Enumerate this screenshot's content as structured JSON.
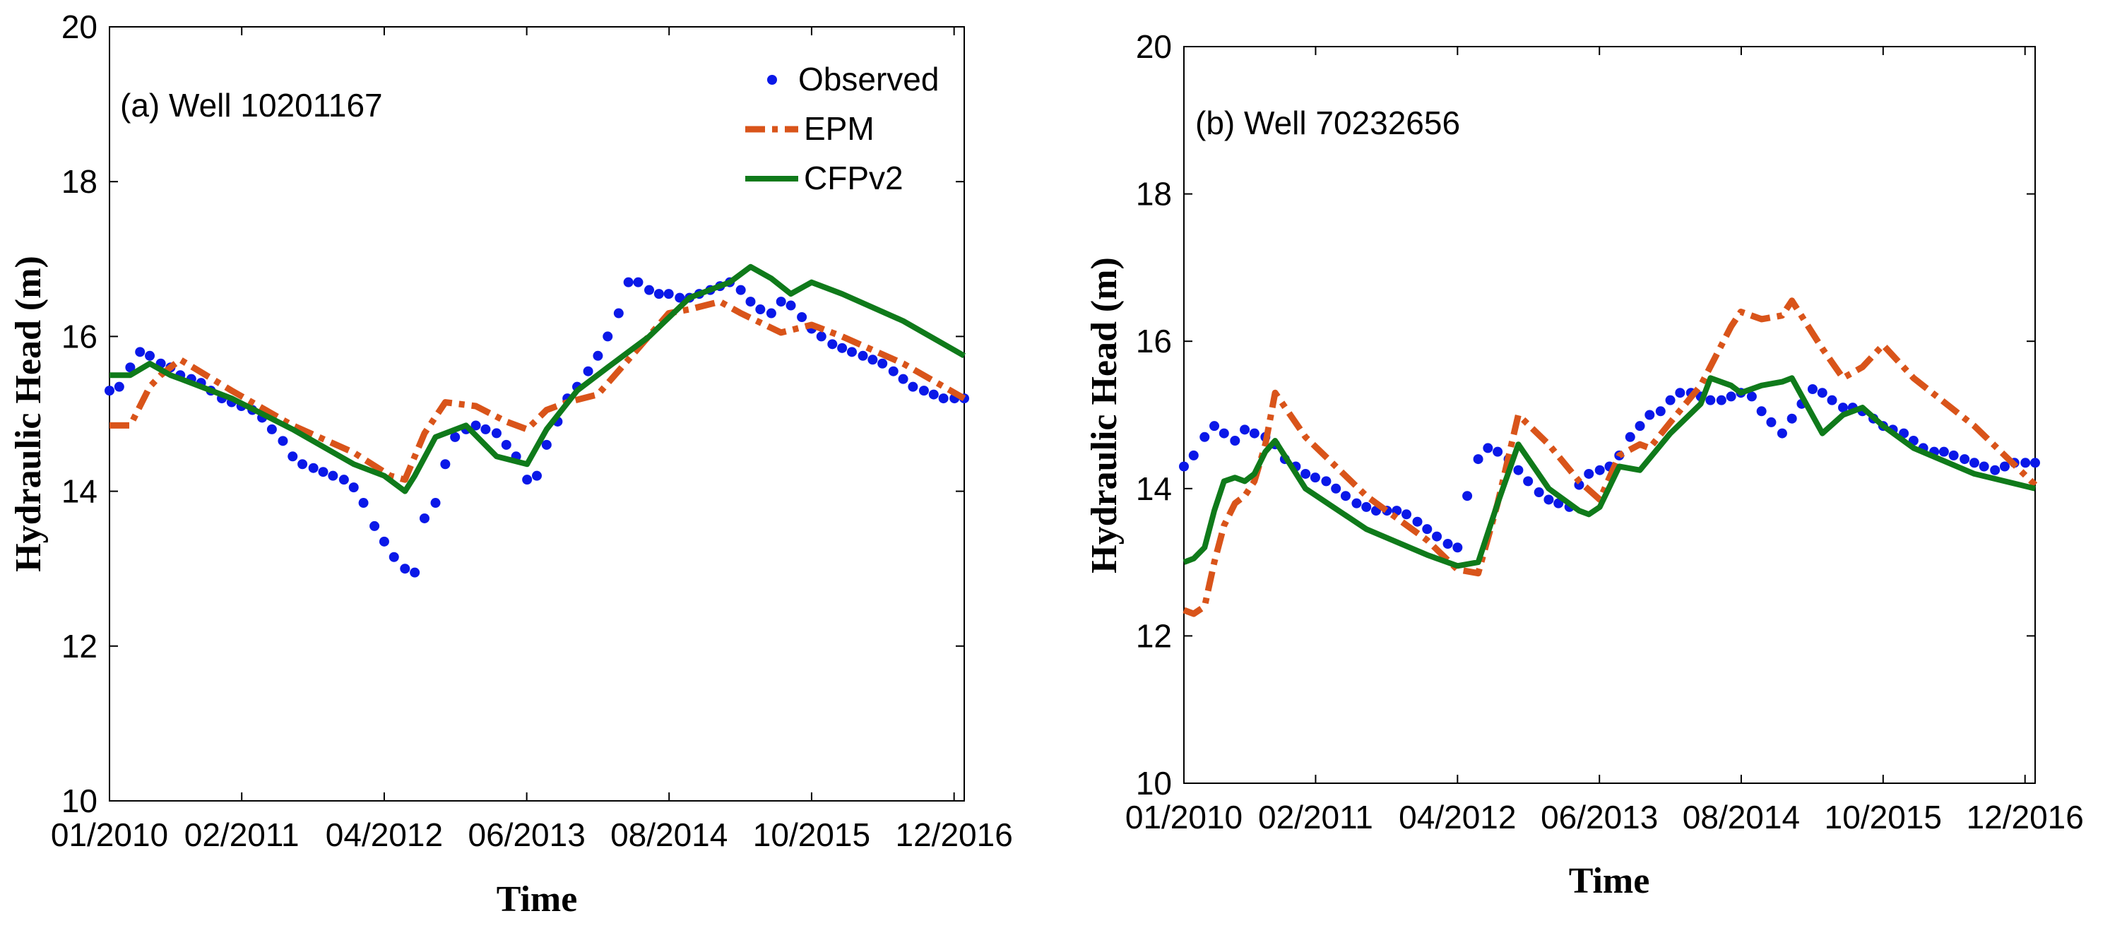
{
  "chart_data": [
    {
      "type": "line",
      "title": "(a) Well 10201167",
      "xlabel": "Time",
      "ylabel": "Hydraulic Head (m)",
      "ylim": [
        10,
        20
      ],
      "xlim": [
        2010.0,
        2017.0
      ],
      "yticks": [
        10,
        12,
        14,
        16,
        18,
        20
      ],
      "xticks": [
        {
          "value": 2010.0,
          "label": "01/2010"
        },
        {
          "value": 2011.083,
          "label": "02/2011"
        },
        {
          "value": 2012.25,
          "label": "04/2012"
        },
        {
          "value": 2013.417,
          "label": "06/2013"
        },
        {
          "value": 2014.583,
          "label": "08/2014"
        },
        {
          "value": 2015.75,
          "label": "10/2015"
        },
        {
          "value": 2016.917,
          "label": "12/2016"
        }
      ],
      "legend": {
        "position": "top-right",
        "entries": [
          "Observed",
          "EPM",
          "CFPv2"
        ]
      },
      "series": [
        {
          "name": "Observed",
          "style": "dots",
          "color": "#0a18e8",
          "x": [
            2010.0,
            2010.08,
            2010.17,
            2010.25,
            2010.33,
            2010.42,
            2010.5,
            2010.58,
            2010.67,
            2010.75,
            2010.83,
            2010.92,
            2011.0,
            2011.08,
            2011.17,
            2011.25,
            2011.33,
            2011.42,
            2011.5,
            2011.58,
            2011.67,
            2011.75,
            2011.83,
            2011.92,
            2012.0,
            2012.08,
            2012.17,
            2012.25,
            2012.33,
            2012.42,
            2012.5,
            2012.58,
            2012.67,
            2012.75,
            2012.83,
            2012.92,
            2013.0,
            2013.08,
            2013.17,
            2013.25,
            2013.33,
            2013.42,
            2013.5,
            2013.58,
            2013.67,
            2013.75,
            2013.83,
            2013.92,
            2014.0,
            2014.08,
            2014.17,
            2014.25,
            2014.33,
            2014.42,
            2014.5,
            2014.58,
            2014.67,
            2014.75,
            2014.83,
            2014.92,
            2015.0,
            2015.08,
            2015.17,
            2015.25,
            2015.33,
            2015.42,
            2015.5,
            2015.58,
            2015.67,
            2015.75,
            2015.83,
            2015.92,
            2016.0,
            2016.08,
            2016.17,
            2016.25,
            2016.33,
            2016.42,
            2016.5,
            2016.58,
            2016.67,
            2016.75,
            2016.83,
            2016.92,
            2017.0
          ],
          "y": [
            15.3,
            15.35,
            15.6,
            15.8,
            15.75,
            15.65,
            15.6,
            15.5,
            15.45,
            15.4,
            15.3,
            15.2,
            15.15,
            15.1,
            15.05,
            14.95,
            14.8,
            14.65,
            14.45,
            14.35,
            14.3,
            14.25,
            14.2,
            14.15,
            14.05,
            13.85,
            13.55,
            13.35,
            13.15,
            13.0,
            12.95,
            13.65,
            13.85,
            14.35,
            14.7,
            14.8,
            14.85,
            14.8,
            14.75,
            14.6,
            14.45,
            14.15,
            14.2,
            14.6,
            14.9,
            15.2,
            15.35,
            15.55,
            15.75,
            16.0,
            16.3,
            16.7,
            16.7,
            16.6,
            16.55,
            16.55,
            16.5,
            16.5,
            16.55,
            16.6,
            16.65,
            16.7,
            16.6,
            16.45,
            16.35,
            16.3,
            16.45,
            16.4,
            16.25,
            16.1,
            16.0,
            15.9,
            15.85,
            15.8,
            15.75,
            15.7,
            15.65,
            15.55,
            15.45,
            15.35,
            15.3,
            15.25,
            15.2,
            15.2,
            15.2
          ]
        },
        {
          "name": "EPM",
          "style": "dash",
          "color": "#d9541a",
          "x": [
            2010.0,
            2010.17,
            2010.33,
            2010.42,
            2010.5,
            2010.58,
            2011.0,
            2011.5,
            2012.0,
            2012.3,
            2012.42,
            2012.58,
            2012.75,
            2013.0,
            2013.25,
            2013.42,
            2013.58,
            2013.75,
            2014.0,
            2014.25,
            2014.58,
            2014.75,
            2015.0,
            2015.17,
            2015.5,
            2015.75,
            2016.0,
            2016.5,
            2017.0
          ],
          "y": [
            14.85,
            14.85,
            15.35,
            15.5,
            15.6,
            15.7,
            15.3,
            14.85,
            14.5,
            14.2,
            14.15,
            14.75,
            15.15,
            15.1,
            14.9,
            14.8,
            15.05,
            15.15,
            15.25,
            15.7,
            16.3,
            16.35,
            16.45,
            16.3,
            16.05,
            16.15,
            16.0,
            15.65,
            15.2
          ]
        },
        {
          "name": "CFPv2",
          "style": "solid",
          "color": "#0f7a1a",
          "x": [
            2010.0,
            2010.17,
            2010.33,
            2010.5,
            2010.67,
            2011.0,
            2011.5,
            2012.0,
            2012.25,
            2012.42,
            2012.5,
            2012.67,
            2012.92,
            2013.17,
            2013.42,
            2013.58,
            2013.83,
            2014.08,
            2014.42,
            2014.75,
            2015.08,
            2015.25,
            2015.42,
            2015.58,
            2015.75,
            2016.0,
            2016.5,
            2017.0
          ],
          "y": [
            15.5,
            15.5,
            15.65,
            15.5,
            15.4,
            15.2,
            14.8,
            14.35,
            14.2,
            14.0,
            14.2,
            14.7,
            14.85,
            14.45,
            14.35,
            14.8,
            15.3,
            15.6,
            16.0,
            16.5,
            16.7,
            16.9,
            16.75,
            16.55,
            16.7,
            16.55,
            16.2,
            15.75
          ]
        }
      ]
    },
    {
      "type": "line",
      "title": "(b) Well 70232656",
      "xlabel": "Time",
      "ylabel": "Hydraulic Head (m)",
      "ylim": [
        10,
        20
      ],
      "xlim": [
        2010.0,
        2017.0
      ],
      "yticks": [
        10,
        12,
        14,
        16,
        18,
        20
      ],
      "xticks": [
        {
          "value": 2010.0,
          "label": "01/2010"
        },
        {
          "value": 2011.083,
          "label": "02/2011"
        },
        {
          "value": 2012.25,
          "label": "04/2012"
        },
        {
          "value": 2013.417,
          "label": "06/2013"
        },
        {
          "value": 2014.583,
          "label": "08/2014"
        },
        {
          "value": 2015.75,
          "label": "10/2015"
        },
        {
          "value": 2016.917,
          "label": "12/2016"
        }
      ],
      "legend": null,
      "series": [
        {
          "name": "Observed",
          "style": "dots",
          "color": "#0a18e8",
          "x": [
            2010.0,
            2010.08,
            2010.17,
            2010.25,
            2010.33,
            2010.42,
            2010.5,
            2010.58,
            2010.67,
            2010.75,
            2010.83,
            2010.92,
            2011.0,
            2011.08,
            2011.17,
            2011.25,
            2011.33,
            2011.42,
            2011.5,
            2011.58,
            2011.67,
            2011.75,
            2011.83,
            2011.92,
            2012.0,
            2012.08,
            2012.17,
            2012.25,
            2012.33,
            2012.42,
            2012.5,
            2012.58,
            2012.67,
            2012.75,
            2012.83,
            2012.92,
            2013.0,
            2013.08,
            2013.17,
            2013.25,
            2013.33,
            2013.42,
            2013.5,
            2013.58,
            2013.67,
            2013.75,
            2013.83,
            2013.92,
            2014.0,
            2014.08,
            2014.17,
            2014.25,
            2014.33,
            2014.42,
            2014.5,
            2014.58,
            2014.67,
            2014.75,
            2014.83,
            2014.92,
            2015.0,
            2015.08,
            2015.17,
            2015.25,
            2015.33,
            2015.42,
            2015.5,
            2015.58,
            2015.67,
            2015.75,
            2015.83,
            2015.92,
            2016.0,
            2016.08,
            2016.17,
            2016.25,
            2016.33,
            2016.42,
            2016.5,
            2016.58,
            2016.67,
            2016.75,
            2016.83,
            2016.92,
            2017.0
          ],
          "y": [
            14.3,
            14.45,
            14.7,
            14.85,
            14.75,
            14.65,
            14.8,
            14.75,
            14.7,
            14.6,
            14.4,
            14.3,
            14.2,
            14.15,
            14.1,
            14.0,
            13.9,
            13.8,
            13.75,
            13.7,
            13.7,
            13.7,
            13.65,
            13.55,
            13.45,
            13.35,
            13.25,
            13.2,
            13.9,
            14.4,
            14.55,
            14.5,
            14.4,
            14.25,
            14.1,
            13.95,
            13.85,
            13.8,
            13.75,
            14.05,
            14.2,
            14.25,
            14.3,
            14.45,
            14.7,
            14.85,
            15.0,
            15.05,
            15.2,
            15.3,
            15.3,
            15.25,
            15.2,
            15.2,
            15.25,
            15.3,
            15.25,
            15.05,
            14.9,
            14.75,
            14.95,
            15.15,
            15.35,
            15.3,
            15.2,
            15.1,
            15.1,
            15.05,
            14.95,
            14.85,
            14.8,
            14.75,
            14.65,
            14.55,
            14.5,
            14.5,
            14.45,
            14.4,
            14.35,
            14.3,
            14.25,
            14.3,
            14.35,
            14.35,
            14.35
          ]
        },
        {
          "name": "EPM",
          "style": "dash",
          "color": "#d9541a",
          "x": [
            2010.0,
            2010.08,
            2010.17,
            2010.25,
            2010.33,
            2010.42,
            2010.5,
            2010.58,
            2010.67,
            2010.75,
            2011.0,
            2011.5,
            2012.0,
            2012.25,
            2012.42,
            2012.58,
            2012.75,
            2013.0,
            2013.25,
            2013.42,
            2013.58,
            2013.75,
            2013.83,
            2014.0,
            2014.25,
            2014.5,
            2014.58,
            2014.75,
            2014.92,
            2015.0,
            2015.25,
            2015.42,
            2015.58,
            2015.75,
            2016.0,
            2016.5,
            2017.0
          ],
          "y": [
            12.35,
            12.3,
            12.4,
            13.0,
            13.5,
            13.8,
            13.9,
            14.1,
            14.6,
            15.3,
            14.7,
            13.9,
            13.3,
            12.9,
            12.85,
            13.8,
            15.0,
            14.6,
            14.1,
            13.85,
            14.45,
            14.6,
            14.55,
            14.9,
            15.4,
            16.2,
            16.4,
            16.3,
            16.35,
            16.55,
            15.9,
            15.5,
            15.65,
            15.95,
            15.5,
            14.85,
            14.05
          ]
        },
        {
          "name": "CFPv2",
          "style": "solid",
          "color": "#0f7a1a",
          "x": [
            2010.0,
            2010.08,
            2010.17,
            2010.25,
            2010.33,
            2010.42,
            2010.5,
            2010.58,
            2010.67,
            2010.75,
            2011.0,
            2011.5,
            2012.0,
            2012.25,
            2012.42,
            2012.58,
            2012.75,
            2013.0,
            2013.25,
            2013.33,
            2013.42,
            2013.58,
            2013.75,
            2014.0,
            2014.25,
            2014.33,
            2014.5,
            2014.58,
            2014.75,
            2014.92,
            2015.0,
            2015.25,
            2015.42,
            2015.58,
            2015.75,
            2016.0,
            2016.5,
            2017.0
          ],
          "y": [
            13.0,
            13.05,
            13.2,
            13.7,
            14.1,
            14.15,
            14.1,
            14.2,
            14.5,
            14.65,
            14.0,
            13.45,
            13.1,
            12.95,
            13.0,
            13.8,
            14.6,
            14.0,
            13.7,
            13.65,
            13.75,
            14.3,
            14.25,
            14.75,
            15.15,
            15.5,
            15.4,
            15.3,
            15.4,
            15.45,
            15.5,
            14.75,
            15.0,
            15.1,
            14.85,
            14.55,
            14.2,
            14.0
          ]
        }
      ]
    }
  ]
}
